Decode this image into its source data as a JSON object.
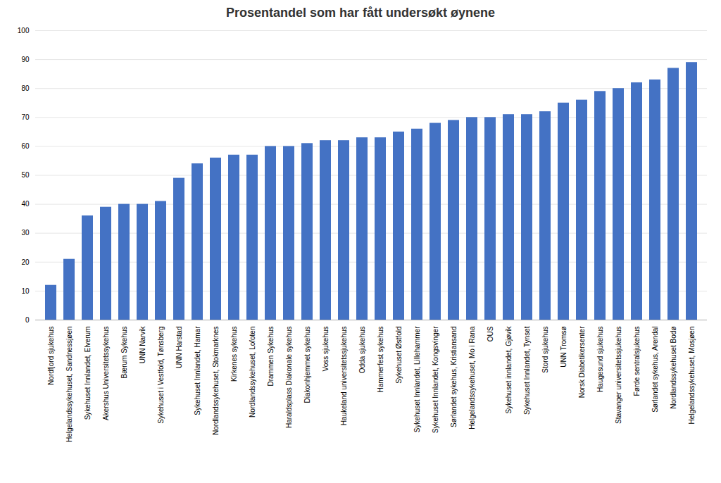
{
  "chart_data": {
    "type": "bar",
    "title": "Prosentandel som har fått undersøkt øynene",
    "categories": [
      "Nordfjord sjukehus",
      "Helgelandssykehuset, Sandnessjøen",
      "Sykehuset Innlandet, Elverum",
      "Akershus Universitetssykehus",
      "Bærum Sykehus",
      "UNN Narvik",
      "Sykehuset i Vestfold, Tønsberg",
      "UNN Harstad",
      "Sykehuset Innlandet, Hamar",
      "Nordlandssykehuset, Stokmarknes",
      "Kirkenes sykehus",
      "Nordlandssykehuset, Lofoten",
      "Drammen Sykehus",
      "Haraldsplass Diakonale sykehus",
      "Diakonhjemmet sykehus",
      "Voss sjukehus",
      "Haukeland universitetssjukehus",
      "Odda sjukehus",
      "Hammerfest sykehus",
      "Sykehuset Østfold",
      "Sykehuset Innlandet, Lillehammer",
      "Sykehuset Innlandet, Kongsvinger",
      "Sørlandet sykehus, Kristiansand",
      "Helgelandssykehuset, Mo i Rana",
      "OUS",
      "Sykehuset innlandet, Gjøvik",
      "Sykehuset Innlandet, Tynset",
      "Stord sjukehus",
      "UNN Tromsø",
      "Norsk Diabetikersenter",
      "Haugesund sjukehus",
      "Stavanger universitetssjukehus",
      "Førde sentralsjukehus",
      "Sørlandet sykehus, Arendal",
      "Nordlandssykehuset Bodø",
      "Helgelandssykehuset, Mosjøen"
    ],
    "values": [
      12,
      21,
      36,
      39,
      40,
      40,
      41,
      49,
      54,
      56,
      57,
      57,
      60,
      60,
      61,
      62,
      62,
      63,
      63,
      65,
      66,
      68,
      69,
      70,
      70,
      71,
      71,
      72,
      75,
      76,
      79,
      80,
      82,
      83,
      87,
      89
    ],
    "color": "#4472C4",
    "ylim": [
      0,
      100
    ],
    "yticks": [
      0,
      10,
      20,
      30,
      40,
      50,
      60,
      70,
      80,
      90,
      100
    ],
    "grid": true
  }
}
